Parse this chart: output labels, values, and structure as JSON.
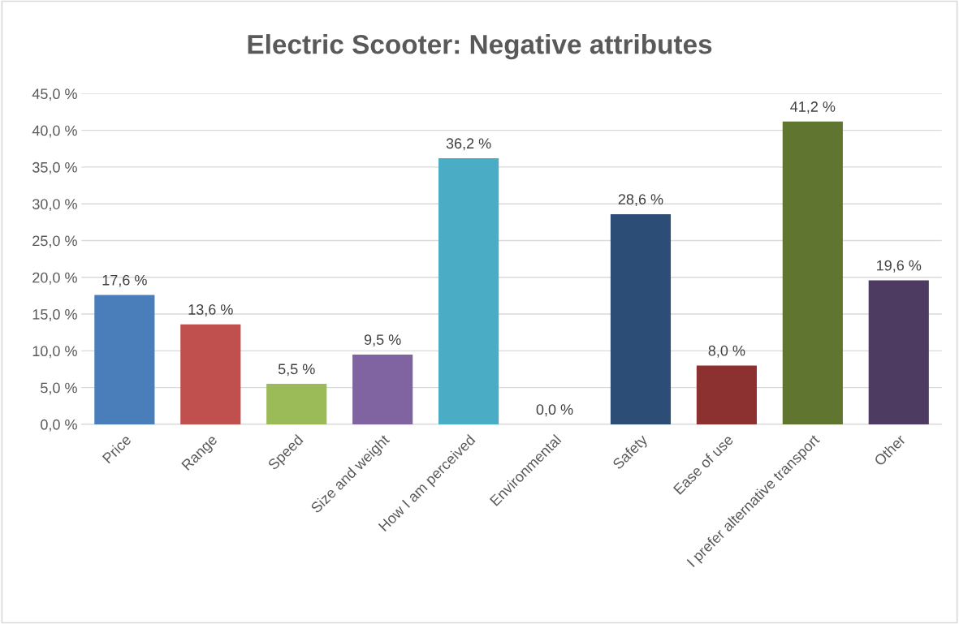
{
  "chart_data": {
    "type": "bar",
    "title": "Electric Scooter: Negative attributes",
    "categories": [
      "Price",
      "Range",
      "Speed",
      "Size and weight",
      "How I am perceived",
      "Environmental",
      "Safety",
      "Ease of use",
      "I prefer alternative transport",
      "Other"
    ],
    "values": [
      17.6,
      13.6,
      5.5,
      9.5,
      36.2,
      0.0,
      28.6,
      8.0,
      41.2,
      19.6
    ],
    "value_labels": [
      "17,6 %",
      "13,6 %",
      "5,5 %",
      "9,5 %",
      "36,2 %",
      "0,0 %",
      "28,6 %",
      "8,0 %",
      "41,2 %",
      "19,6 %"
    ],
    "colors": [
      "#4a7ebb",
      "#c0504d",
      "#9bbb59",
      "#8064a2",
      "#4bacc6",
      "#f79646",
      "#2c4d75",
      "#8c3130",
      "#5f7530",
      "#4d3b62"
    ],
    "ylim": [
      0,
      45
    ],
    "yticks": [
      {
        "value": 0,
        "label": "0,0 %"
      },
      {
        "value": 5,
        "label": "5,0 %"
      },
      {
        "value": 10,
        "label": "10,0 %"
      },
      {
        "value": 15,
        "label": "15,0 %"
      },
      {
        "value": 20,
        "label": "20,0 %"
      },
      {
        "value": 25,
        "label": "25,0 %"
      },
      {
        "value": 30,
        "label": "30,0 %"
      },
      {
        "value": 35,
        "label": "35,0 %"
      },
      {
        "value": 40,
        "label": "40,0 %"
      },
      {
        "value": 45,
        "label": "45,0 %"
      }
    ],
    "grid": "y",
    "legend": false
  }
}
